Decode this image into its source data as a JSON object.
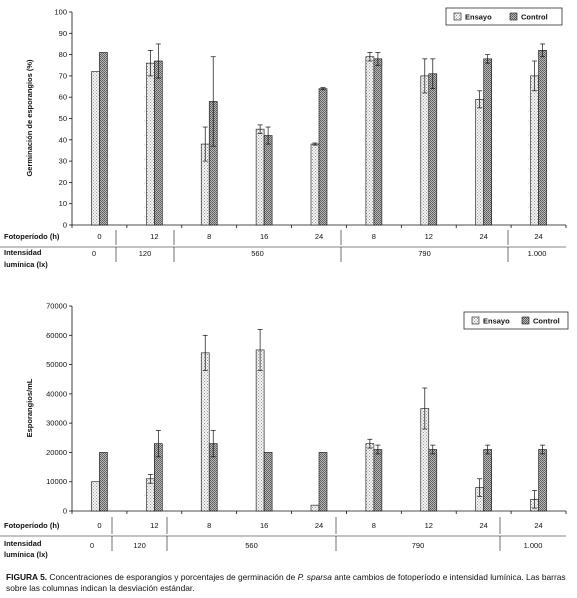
{
  "chart_data": [
    {
      "type": "bar",
      "ylabel": "Germinación de esporangios (%)",
      "ylim": [
        0,
        100
      ],
      "yticks": [
        "0",
        "10",
        "20",
        "30",
        "40",
        "50",
        "60",
        "70",
        "80",
        "90",
        "100"
      ],
      "categories": [
        "0",
        "12",
        "8",
        "16",
        "24",
        "8",
        "12",
        "24",
        "24"
      ],
      "row_labels": {
        "fotoperiodo": "Fotoperíodo (h)",
        "intensidad_1": "Intensidad",
        "intensidad_2": "lumínica (lx)"
      },
      "intensity_groups": [
        "0",
        "120",
        "560",
        "790",
        "1.000"
      ],
      "series": [
        {
          "name": "Ensayo",
          "values": [
            72,
            76,
            38,
            45,
            38,
            79,
            70,
            59,
            70
          ],
          "errors": [
            0,
            6,
            8,
            2,
            0.5,
            2,
            8,
            4,
            7
          ]
        },
        {
          "name": "Control",
          "values": [
            81,
            77,
            58,
            42,
            64,
            78,
            71,
            78,
            82
          ],
          "errors": [
            0,
            8,
            21,
            4,
            0.5,
            3,
            7,
            2,
            3
          ]
        }
      ],
      "legend_position": "top-right"
    },
    {
      "type": "bar",
      "ylabel": "Esporangios/mL",
      "ylim": [
        0,
        70000
      ],
      "yticks": [
        "0",
        "10000",
        "20000",
        "30000",
        "40000",
        "50000",
        "60000",
        "70000"
      ],
      "categories": [
        "0",
        "12",
        "8",
        "16",
        "24",
        "8",
        "12",
        "24",
        "24"
      ],
      "row_labels": {
        "fotoperiodo": "Fotoperíodo (h)",
        "intensidad_1": "Intensidad",
        "intensidad_2": "lumínica (lx)"
      },
      "intensity_groups": [
        "0",
        "120",
        "560",
        "790",
        "1.000"
      ],
      "series": [
        {
          "name": "Ensayo",
          "values": [
            10000,
            11000,
            54000,
            55000,
            2000,
            23000,
            35000,
            8000,
            4000
          ],
          "errors": [
            0,
            1500,
            6000,
            7000,
            0,
            1500,
            7000,
            3000,
            3000
          ]
        },
        {
          "name": "Control",
          "values": [
            20000,
            23000,
            23000,
            20000,
            20000,
            21000,
            21000,
            21000,
            21000
          ],
          "errors": [
            0,
            4500,
            4500,
            0,
            0,
            1500,
            1500,
            1500,
            1500
          ]
        }
      ],
      "legend_position": "top-right"
    }
  ],
  "caption": {
    "figure": "FIGURA 5.",
    "text_a": " Concentraciones de esporangios y porcentajes de germinación de ",
    "species": "P. sparsa",
    "text_b": " ante cambios de fotoperíodo e intensidad lumínica. Las barras sobre las columnas indican la desviación estándar."
  }
}
